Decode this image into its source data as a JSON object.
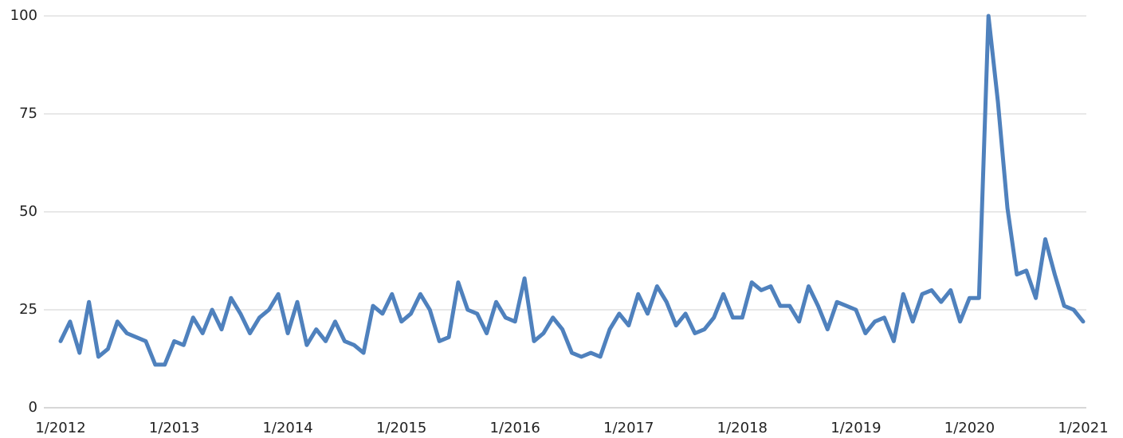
{
  "chart_data": {
    "type": "line",
    "x": [
      "1/2012",
      "2/2012",
      "3/2012",
      "4/2012",
      "5/2012",
      "6/2012",
      "7/2012",
      "8/2012",
      "9/2012",
      "10/2012",
      "11/2012",
      "12/2012",
      "1/2013",
      "2/2013",
      "3/2013",
      "4/2013",
      "5/2013",
      "6/2013",
      "7/2013",
      "8/2013",
      "9/2013",
      "10/2013",
      "11/2013",
      "12/2013",
      "1/2014",
      "2/2014",
      "3/2014",
      "4/2014",
      "5/2014",
      "6/2014",
      "7/2014",
      "8/2014",
      "9/2014",
      "10/2014",
      "11/2014",
      "12/2014",
      "1/2015",
      "2/2015",
      "3/2015",
      "4/2015",
      "5/2015",
      "6/2015",
      "7/2015",
      "8/2015",
      "9/2015",
      "10/2015",
      "11/2015",
      "12/2015",
      "1/2016",
      "2/2016",
      "3/2016",
      "4/2016",
      "5/2016",
      "6/2016",
      "7/2016",
      "8/2016",
      "9/2016",
      "10/2016",
      "11/2016",
      "12/2016",
      "1/2017",
      "2/2017",
      "3/2017",
      "4/2017",
      "5/2017",
      "6/2017",
      "7/2017",
      "8/2017",
      "9/2017",
      "10/2017",
      "11/2017",
      "12/2017",
      "1/2018",
      "2/2018",
      "3/2018",
      "4/2018",
      "5/2018",
      "6/2018",
      "7/2018",
      "8/2018",
      "9/2018",
      "10/2018",
      "11/2018",
      "12/2018",
      "1/2019",
      "2/2019",
      "3/2019",
      "4/2019",
      "5/2019",
      "6/2019",
      "7/2019",
      "8/2019",
      "9/2019",
      "10/2019",
      "11/2019",
      "12/2019",
      "1/2020",
      "2/2020",
      "3/2020",
      "4/2020",
      "5/2020",
      "6/2020",
      "7/2020",
      "8/2020",
      "9/2020",
      "10/2020",
      "11/2020",
      "12/2020",
      "1/2021"
    ],
    "series": [
      {
        "color": "#4f81bd",
        "values": [
          17,
          22,
          14,
          27,
          13,
          15,
          22,
          19,
          18,
          17,
          11,
          11,
          17,
          16,
          23,
          19,
          25,
          20,
          28,
          24,
          19,
          23,
          25,
          29,
          19,
          27,
          16,
          20,
          17,
          22,
          17,
          16,
          14,
          26,
          24,
          29,
          22,
          24,
          29,
          25,
          17,
          18,
          32,
          25,
          24,
          19,
          27,
          23,
          22,
          33,
          17,
          19,
          23,
          20,
          14,
          13,
          14,
          13,
          20,
          24,
          21,
          29,
          24,
          31,
          27,
          21,
          24,
          19,
          20,
          23,
          29,
          23,
          23,
          32,
          30,
          31,
          26,
          26,
          22,
          31,
          26,
          20,
          27,
          26,
          25,
          19,
          22,
          23,
          17,
          29,
          22,
          29,
          30,
          27,
          30,
          22,
          28,
          28,
          100,
          78,
          51,
          34,
          35,
          28,
          43,
          34,
          26,
          25,
          22
        ]
      }
    ],
    "xticks": [
      "1/2012",
      "1/2013",
      "1/2014",
      "1/2015",
      "1/2016",
      "1/2017",
      "1/2018",
      "1/2019",
      "1/2020",
      "1/2021"
    ],
    "ylim": [
      0,
      100
    ],
    "yticks": [
      0,
      25,
      50,
      75,
      100
    ],
    "grid": true
  }
}
